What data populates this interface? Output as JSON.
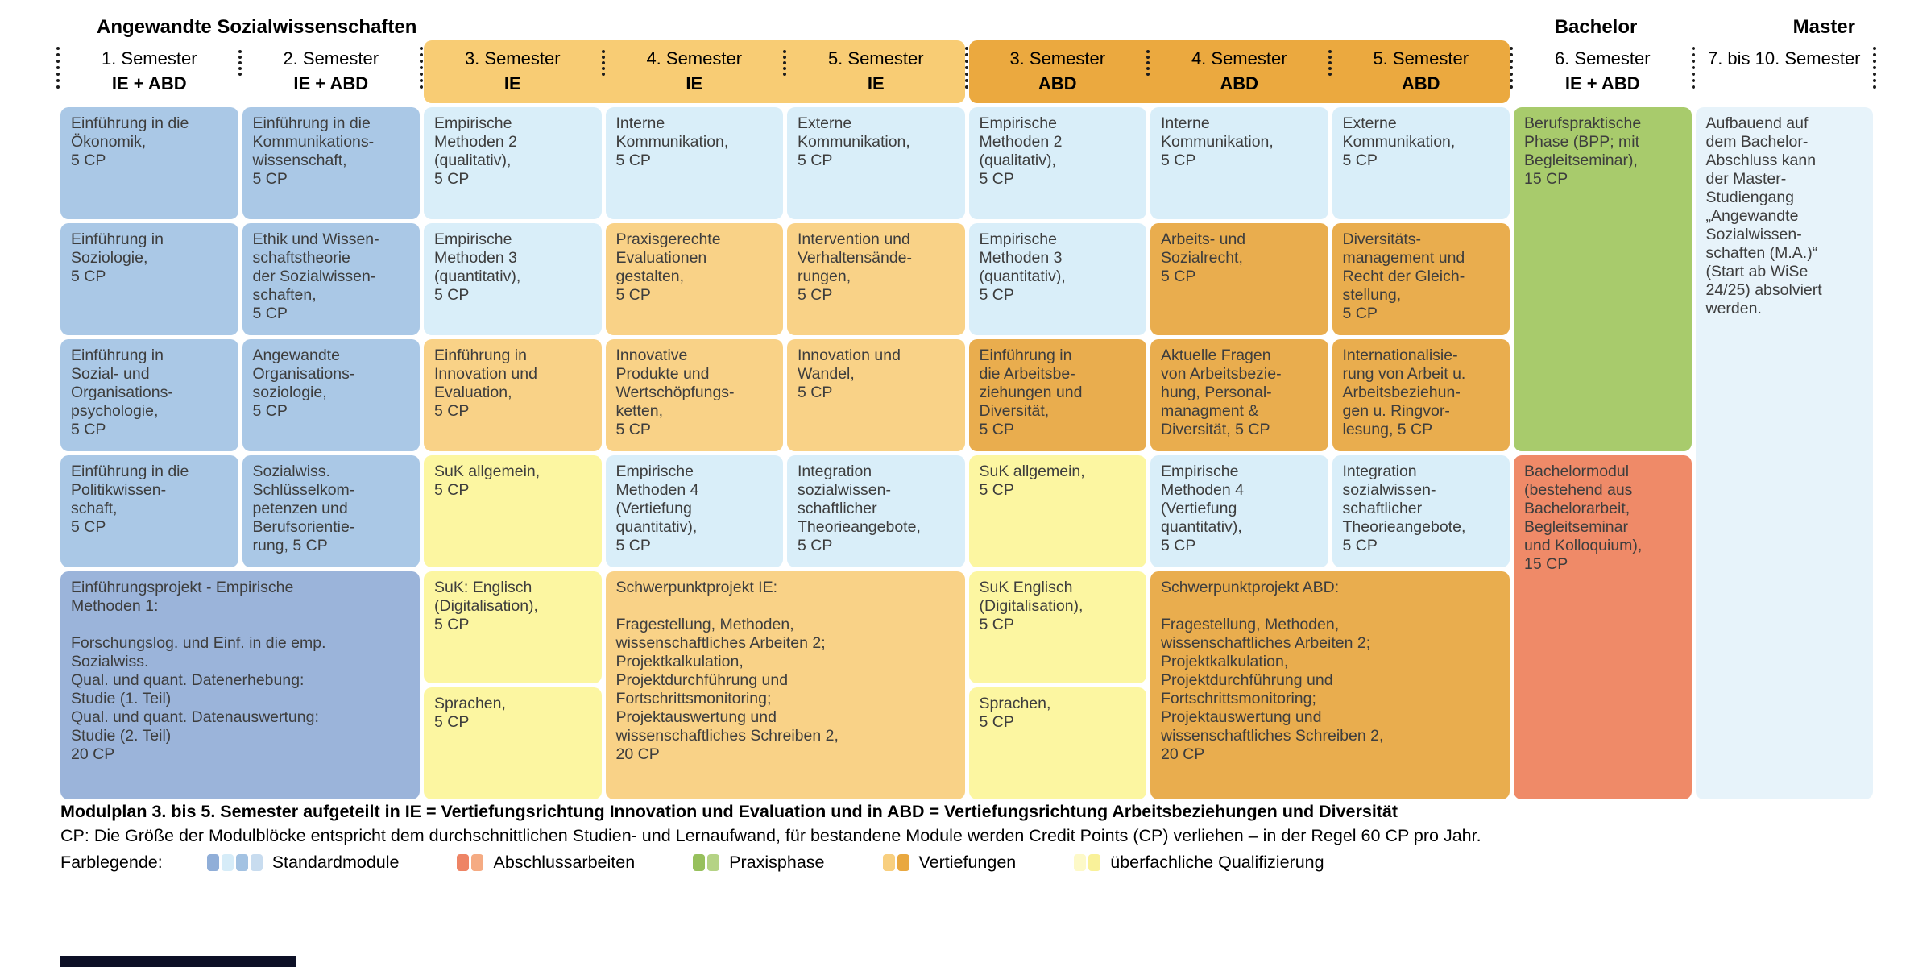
{
  "title": "Angewandte Sozialwissenschaften",
  "degree_labels": {
    "bachelor": "Bachelor",
    "master": "Master"
  },
  "colors": {
    "std": "#aac8e6",
    "stdd": "#9bb4da",
    "lb": "#d9eef9",
    "ie": "#f9d287",
    "abd": "#e9ad4e",
    "y": "#fcf6a1",
    "green": "#a8cb6c",
    "salmon": "#ef8a68",
    "master": "#e7f3fa",
    "band_ie": "#f8cc74",
    "band_abd": "#eba93f",
    "text": "#3d3d3d"
  },
  "header_bands": [
    {
      "start": 3,
      "span": 3,
      "color": "band_ie",
      "name": "ie-header-band"
    },
    {
      "start": 6,
      "span": 3,
      "color": "band_abd",
      "name": "abd-header-band"
    }
  ],
  "columns": [
    {
      "semester": "1. Semester",
      "track": "IE + ABD",
      "separator": "tall"
    },
    {
      "semester": "2. Semester",
      "track": "IE + ABD",
      "separator": "short"
    },
    {
      "semester": "3. Semester",
      "track": "IE",
      "separator": "tall"
    },
    {
      "semester": "4. Semester",
      "track": "IE",
      "separator": "short"
    },
    {
      "semester": "5. Semester",
      "track": "IE",
      "separator": "short"
    },
    {
      "semester": "3. Semester",
      "track": "ABD",
      "separator": "tall"
    },
    {
      "semester": "4. Semester",
      "track": "ABD",
      "separator": "short"
    },
    {
      "semester": "5. Semester",
      "track": "ABD",
      "separator": "short"
    },
    {
      "semester": "6. Semester",
      "track": "IE + ABD",
      "separator": "tall"
    },
    {
      "semester": "7. bis 10. Semester",
      "track": "",
      "separator": "tall"
    }
  ],
  "blocks": [
    {
      "c": 1,
      "r": 1,
      "color": "std",
      "text": "Einführung in die\nÖkonomik,\n5 CP"
    },
    {
      "c": 1,
      "r": 2,
      "color": "std",
      "text": "Einführung in\nSoziologie,\n5 CP"
    },
    {
      "c": 1,
      "r": 3,
      "color": "std",
      "text": "Einführung in\nSozial- und\nOrganisations-\npsychologie,\n5 CP"
    },
    {
      "c": 1,
      "r": 4,
      "color": "std",
      "text": "Einführung in die\nPolitikwissen-\nschaft,\n5 CP"
    },
    {
      "c": 1,
      "r": 5,
      "cs": 2,
      "rs": 2,
      "color": "stdd",
      "name": "einfuehrungsprojekt-block",
      "text": "Einführungsprojekt - Empirische\nMethoden 1:\n\nForschungslog. und Einf. in die emp.\nSozialwiss.\nQual. und quant. Datenerhebung:\nStudie (1. Teil)\nQual. und quant. Datenauswertung:\nStudie (2. Teil)\n20 CP"
    },
    {
      "c": 2,
      "r": 1,
      "color": "std",
      "text": "Einführung in die\nKommunikations-\nwissenschaft,\n5 CP"
    },
    {
      "c": 2,
      "r": 2,
      "color": "std",
      "text": "Ethik und Wissen-\nschaftstheorie\nder Sozialwissen-\nschaften,\n5 CP"
    },
    {
      "c": 2,
      "r": 3,
      "color": "std",
      "text": "Angewandte\nOrganisations-\nsoziologie,\n5 CP"
    },
    {
      "c": 2,
      "r": 4,
      "color": "std",
      "text": "Sozialwiss.\nSchlüsselkom-\npetenzen und\nBerufsorientie-\nrung,  5 CP"
    },
    {
      "c": 3,
      "r": 1,
      "color": "lb",
      "text": "Empirische\nMethoden 2\n(qualitativ),\n5 CP"
    },
    {
      "c": 3,
      "r": 2,
      "color": "lb",
      "text": "Empirische\nMethoden 3\n(quantitativ),\n5 CP"
    },
    {
      "c": 3,
      "r": 3,
      "color": "ie",
      "text": "Einführung in\nInnovation und\nEvaluation,\n5 CP"
    },
    {
      "c": 3,
      "r": 4,
      "color": "y",
      "text": "SuK allgemein,\n5 CP"
    },
    {
      "c": 3,
      "r": 5,
      "color": "y",
      "text": "SuK: Englisch\n(Digitalisation),\n5 CP"
    },
    {
      "c": 3,
      "r": 6,
      "color": "y",
      "text": "Sprachen,\n5 CP"
    },
    {
      "c": 4,
      "r": 1,
      "color": "lb",
      "text": "Interne\nKommunikation,\n5 CP"
    },
    {
      "c": 4,
      "r": 2,
      "color": "ie",
      "text": "Praxisgerechte\nEvaluationen\ngestalten,\n5 CP"
    },
    {
      "c": 4,
      "r": 3,
      "color": "ie",
      "text": "Innovative\nProdukte und\nWertschöpfungs-\nketten,\n5 CP"
    },
    {
      "c": 4,
      "r": 4,
      "color": "lb",
      "text": "Empirische\nMethoden 4\n(Vertiefung\nquantitativ),\n5 CP"
    },
    {
      "c": 4,
      "r": 5,
      "cs": 2,
      "rs": 2,
      "color": "ie",
      "name": "schwerpunktprojekt-ie-block",
      "text": "Schwerpunktprojekt IE:\n\nFragestellung, Methoden,\nwissenschaftliches Arbeiten 2;\nProjektkalkulation,\nProjektdurchführung und\nFortschrittsmonitoring;\nProjektauswertung und\nwissenschaftliches Schreiben 2,\n20 CP"
    },
    {
      "c": 5,
      "r": 1,
      "color": "lb",
      "text": "Externe\nKommunikation,\n5 CP"
    },
    {
      "c": 5,
      "r": 2,
      "color": "ie",
      "text": "Intervention und\nVerhaltensände-\nrungen,\n5 CP"
    },
    {
      "c": 5,
      "r": 3,
      "color": "ie",
      "text": "Innovation und\nWandel,\n5 CP"
    },
    {
      "c": 5,
      "r": 4,
      "color": "lb",
      "text": "Integration\nsozialwissen-\nschaftlicher\nTheorieangebote,\n5 CP"
    },
    {
      "c": 6,
      "r": 1,
      "color": "lb",
      "text": "Empirische\nMethoden 2\n(qualitativ),\n5 CP"
    },
    {
      "c": 6,
      "r": 2,
      "color": "lb",
      "text": "Empirische\nMethoden 3\n(quantitativ),\n5 CP"
    },
    {
      "c": 6,
      "r": 3,
      "color": "abd",
      "text": "Einführung in\ndie Arbeitsbe-\nziehungen und\nDiversität,\n5 CP"
    },
    {
      "c": 6,
      "r": 4,
      "color": "y",
      "text": "SuK allgemein,\n5 CP"
    },
    {
      "c": 6,
      "r": 5,
      "color": "y",
      "text": "SuK  Englisch\n(Digitalisation),\n5 CP"
    },
    {
      "c": 6,
      "r": 6,
      "color": "y",
      "text": "Sprachen,\n5 CP"
    },
    {
      "c": 7,
      "r": 1,
      "color": "lb",
      "text": "Interne\nKommunikation,\n5 CP"
    },
    {
      "c": 7,
      "r": 2,
      "color": "abd",
      "text": "Arbeits- und\nSozialrecht,\n5 CP"
    },
    {
      "c": 7,
      "r": 3,
      "color": "abd",
      "text": "Aktuelle Fragen\nvon Arbeitsbezie-\nhung, Personal-\nmanagment &\nDiversität, 5 CP"
    },
    {
      "c": 7,
      "r": 4,
      "color": "lb",
      "text": "Empirische\nMethoden 4\n(Vertiefung\nquantitativ),\n5 CP"
    },
    {
      "c": 7,
      "r": 5,
      "cs": 2,
      "rs": 2,
      "color": "abd",
      "name": "schwerpunktprojekt-abd-block",
      "text": "Schwerpunktprojekt ABD:\n\nFragestellung, Methoden,\nwissenschaftliches Arbeiten 2;\nProjektkalkulation,\nProjektdurchführung und\nFortschrittsmonitoring;\nProjektauswertung und\nwissenschaftliches Schreiben 2,\n20 CP"
    },
    {
      "c": 8,
      "r": 1,
      "color": "lb",
      "text": "Externe\nKommunikation,\n5 CP"
    },
    {
      "c": 8,
      "r": 2,
      "color": "abd",
      "text": "Diversitäts-\nmanagement und\nRecht der Gleich-\nstellung,\n5 CP"
    },
    {
      "c": 8,
      "r": 3,
      "color": "abd",
      "text": "Internationalisie-\nrung von Arbeit u.\nArbeitsbeziehun-\ngen u. Ringvor-\nlesung, 5 CP"
    },
    {
      "c": 8,
      "r": 4,
      "color": "lb",
      "text": "Integration\nsozialwissen-\nschaftlicher\nTheorieangebote,\n5 CP"
    },
    {
      "c": 9,
      "r": 1,
      "rs": 3,
      "color": "green",
      "name": "berufspraktische-phase-block",
      "text": "Berufspraktische\nPhase (BPP; mit\nBegleitseminar),\n15 CP"
    },
    {
      "c": 9,
      "r": 4,
      "rs": 3,
      "color": "salmon",
      "name": "bachelormodul-block",
      "text": "Bachelormodul\n(bestehend aus\nBachelorarbeit,\nBegleitseminar\nund Kolloquium),\n15 CP"
    },
    {
      "c": 10,
      "r": 1,
      "rs": 6,
      "color": "master",
      "name": "master-info-block",
      "text": "Aufbauend auf\ndem Bachelor-\nAbschluss kann\nder Master-\nStudiengang\n„Angewandte\nSozialwissen-\nschaften (M.A.)“\n(Start ab WiSe\n24/25) absolviert\nwerden."
    }
  ],
  "footer": {
    "line1": "Modulplan 3. bis 5. Semester aufgeteilt in IE = Vertiefungsrichtung Innovation und Evaluation und in ABD = Vertiefungsrichtung Arbeitsbeziehungen und Diversität",
    "line2": "CP: Die Größe der Modulblöcke entspricht dem durchschnittlichen Studien- und Lernaufwand, für bestandene Module werden Credit Points (CP) verliehen – in der Regel 60 CP pro Jahr.",
    "legend_label": "Farblegende:",
    "legend": [
      {
        "label": "Standardmodule",
        "swatches": [
          "#90aed8",
          "#d6ecf8",
          "#a3c2e2",
          "#c8dcef"
        ]
      },
      {
        "label": "Abschlussarbeiten",
        "swatches": [
          "#ee8465",
          "#f5ab83"
        ]
      },
      {
        "label": "Praxisphase",
        "swatches": [
          "#97c05c",
          "#b5d385"
        ]
      },
      {
        "label": "Vertiefungen",
        "swatches": [
          "#f8cf7f",
          "#e9a840"
        ]
      },
      {
        "label": "überfachliche Qualifizierung",
        "swatches": [
          "#fdf9c8",
          "#f9f199"
        ]
      }
    ]
  }
}
